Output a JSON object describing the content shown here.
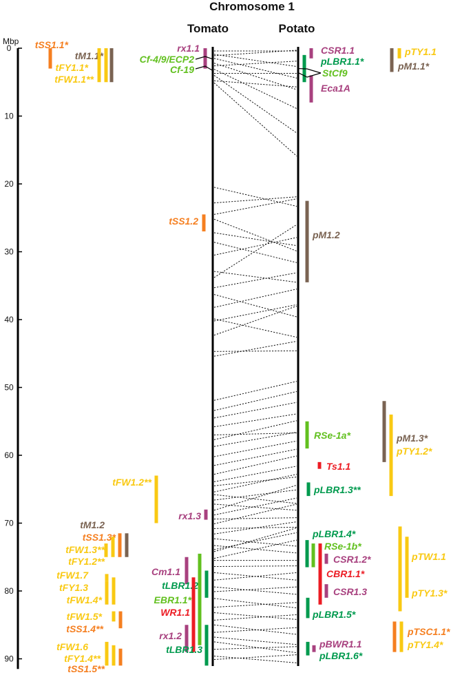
{
  "header": {
    "title": "Chromosome 1",
    "left_track": "Tomato",
    "right_track": "Potato"
  },
  "axis": {
    "unit": "Mbp",
    "ticks": [
      0,
      10,
      20,
      30,
      40,
      50,
      60,
      70,
      80,
      90
    ],
    "max": 91.5
  },
  "colors": {
    "orange": "#f57f20",
    "brown": "#7a6352",
    "yellow": "#f9c913",
    "magenta": "#a8417f",
    "green": "#009a4e",
    "lightgreen": "#62c01f",
    "red": "#ec1c24",
    "black": "#000000"
  },
  "chart_data": {
    "type": "diagram",
    "tomato_markers": [
      {
        "label": "tSS1.1*",
        "color": "orange",
        "start": 0,
        "end": 3
      },
      {
        "label": "tM1.1*",
        "color": "brown",
        "start": 0,
        "end": 5
      },
      {
        "label": "tFY1.1*",
        "color": "yellow",
        "start": 0,
        "end": 5
      },
      {
        "label": "tFW1.1**",
        "color": "yellow",
        "start": 0,
        "end": 5
      },
      {
        "label": "rx1.1",
        "color": "magenta",
        "start": 0,
        "end": 3
      },
      {
        "label": "Cf-4/9/ECP2",
        "color": "lightgreen",
        "start": 1.6,
        "end": 1.6
      },
      {
        "label": "Cf-19",
        "color": "lightgreen",
        "start": 3.3,
        "end": 3.3
      },
      {
        "label": "tSS1.2",
        "color": "orange",
        "start": 24.5,
        "end": 27
      },
      {
        "label": "tFW1.2**",
        "color": "yellow",
        "start": 63,
        "end": 70
      },
      {
        "label": "rx1.3",
        "color": "magenta",
        "start": 68,
        "end": 69.5
      },
      {
        "label": "tM1.2",
        "color": "brown",
        "start": 71.5,
        "end": 75
      },
      {
        "label": "tSS1.3*",
        "color": "orange",
        "start": 71.5,
        "end": 75
      },
      {
        "label": "tFW1.3**",
        "color": "yellow",
        "start": 73,
        "end": 75
      },
      {
        "label": "tFY1.2**",
        "color": "yellow",
        "start": 72,
        "end": 75
      },
      {
        "label": "Cm1.1",
        "color": "magenta",
        "start": 75,
        "end": 79
      },
      {
        "label": "tLBR1.2",
        "color": "green",
        "start": 77,
        "end": 81
      },
      {
        "label": "EBR1.1*",
        "color": "lightgreen",
        "start": 74.5,
        "end": 88
      },
      {
        "label": "WR1.1",
        "color": "red",
        "start": 78,
        "end": 89
      },
      {
        "label": "rx1.2",
        "color": "magenta",
        "start": 85,
        "end": 89
      },
      {
        "label": "tLBR1.3",
        "color": "green",
        "start": 85,
        "end": 91
      },
      {
        "label": "tFW1.7",
        "color": "yellow",
        "start": 77.5,
        "end": 78.5
      },
      {
        "label": "tFY1.3",
        "color": "yellow",
        "start": 78.5,
        "end": 82
      },
      {
        "label": "tFW1.4*",
        "color": "yellow",
        "start": 78,
        "end": 82
      },
      {
        "label": "tFW1.5*",
        "color": "yellow",
        "start": 83,
        "end": 84.5
      },
      {
        "label": "tSS1.4**",
        "color": "orange",
        "start": 83,
        "end": 85.5
      },
      {
        "label": "tFW1.6",
        "color": "yellow",
        "start": 87.5,
        "end": 91
      },
      {
        "label": "tFY1.4**",
        "color": "yellow",
        "start": 88,
        "end": 91
      },
      {
        "label": "tSS1.5**",
        "color": "orange",
        "start": 88.5,
        "end": 91
      }
    ],
    "potato_markers": [
      {
        "label": "CSR1.1",
        "color": "magenta",
        "start": 0,
        "end": 1.5
      },
      {
        "label": "pLBR1.1*",
        "color": "green",
        "start": 1,
        "end": 5
      },
      {
        "label": "StCf9",
        "color": "lightgreen",
        "start": 3,
        "end": 3
      },
      {
        "label": "Eca1A",
        "color": "magenta",
        "start": 4,
        "end": 8
      },
      {
        "label": "pTY1.1",
        "color": "yellow",
        "start": 0,
        "end": 1.5
      },
      {
        "label": "pM1.1*",
        "color": "brown",
        "start": 0,
        "end": 3.5
      },
      {
        "label": "pM1.2",
        "color": "brown",
        "start": 22.5,
        "end": 34.5
      },
      {
        "label": "RSe-1a*",
        "color": "lightgreen",
        "start": 55,
        "end": 59
      },
      {
        "label": "Ts1.1",
        "color": "red",
        "start": 61,
        "end": 62
      },
      {
        "label": "pLBR1.3**",
        "color": "green",
        "start": 64,
        "end": 66
      },
      {
        "label": "pM1.3*",
        "color": "brown",
        "start": 52,
        "end": 61
      },
      {
        "label": "pTY1.2*",
        "color": "yellow",
        "start": 54,
        "end": 66
      },
      {
        "label": "pLBR1.4*",
        "color": "green",
        "start": 72.5,
        "end": 76.5
      },
      {
        "label": "RSe-1b*",
        "color": "lightgreen",
        "start": 73,
        "end": 76.5
      },
      {
        "label": "CSR1.2*",
        "color": "magenta",
        "start": 74.5,
        "end": 76
      },
      {
        "label": "CBR1.1*",
        "color": "red",
        "start": 73,
        "end": 82
      },
      {
        "label": "CSR1.3",
        "color": "magenta",
        "start": 79,
        "end": 81
      },
      {
        "label": "pLBR1.5*",
        "color": "green",
        "start": 81,
        "end": 84
      },
      {
        "label": "pBWR1.1",
        "color": "magenta",
        "start": 88,
        "end": 89
      },
      {
        "label": "pLBR1.6*",
        "color": "green",
        "start": 87.5,
        "end": 89.5
      },
      {
        "label": "pTW1.1",
        "color": "yellow",
        "start": 70.5,
        "end": 83
      },
      {
        "label": "pTY1.3*",
        "color": "yellow",
        "start": 72,
        "end": 81
      },
      {
        "label": "pTSC1.1*",
        "color": "orange",
        "start": 84.5,
        "end": 89
      },
      {
        "label": "pTY1.4*",
        "color": "yellow",
        "start": 84.5,
        "end": 89
      }
    ],
    "synteny_links": [
      [
        0.4,
        0.4
      ],
      [
        0.9,
        2.7
      ],
      [
        1.5,
        4.4
      ],
      [
        2.2,
        6.1
      ],
      [
        3.1,
        8.9
      ],
      [
        4,
        12.5
      ],
      [
        5.1,
        15.9
      ],
      [
        1.1,
        0.3
      ],
      [
        2.6,
        1.9
      ],
      [
        3.7,
        3.7
      ],
      [
        4.8,
        5.7
      ],
      [
        20.5,
        23.3
      ],
      [
        22.8,
        21.9
      ],
      [
        24.5,
        22.2
      ],
      [
        25.2,
        29.9
      ],
      [
        27.2,
        29.1
      ],
      [
        28.6,
        31.6
      ],
      [
        30.5,
        27.9
      ],
      [
        32.9,
        34.5
      ],
      [
        33.8,
        26
      ],
      [
        35.3,
        33.1
      ],
      [
        36.3,
        39.6
      ],
      [
        38.2,
        35.5
      ],
      [
        40.2,
        37.8
      ],
      [
        39.9,
        42.6
      ],
      [
        42.3,
        38
      ],
      [
        44.7,
        44.6
      ],
      [
        45.4,
        43.2
      ],
      [
        51.9,
        49.1
      ],
      [
        53.4,
        50.6
      ],
      [
        54.5,
        52.2
      ],
      [
        55.8,
        53.9
      ],
      [
        57,
        56.7
      ],
      [
        57.7,
        54.9
      ],
      [
        58.7,
        56.6
      ],
      [
        60.2,
        57.9
      ],
      [
        61.5,
        59.1
      ],
      [
        62.8,
        60.1
      ],
      [
        63.9,
        61.6
      ],
      [
        64.5,
        63.2
      ],
      [
        65.4,
        62.8
      ],
      [
        65.8,
        67.1
      ],
      [
        66.6,
        65.1
      ],
      [
        67.2,
        68.1
      ],
      [
        68.1,
        64.4
      ],
      [
        68.8,
        66.3
      ],
      [
        69.4,
        69.2
      ],
      [
        70.1,
        67.2
      ],
      [
        70.8,
        70.6
      ],
      [
        71.6,
        69.8
      ],
      [
        72.3,
        73.4
      ],
      [
        73.3,
        74.4
      ],
      [
        73.9,
        71.4
      ],
      [
        74.2,
        70.7
      ],
      [
        75.2,
        72.5
      ],
      [
        75.5,
        75.5
      ],
      [
        76.4,
        76.3
      ],
      [
        77.3,
        78.4
      ],
      [
        78.4,
        77.3
      ],
      [
        79.4,
        80.5
      ],
      [
        80.1,
        79.4
      ],
      [
        81.1,
        82.5
      ],
      [
        82.4,
        81.7
      ],
      [
        83.2,
        84.2
      ],
      [
        84.3,
        83.5
      ],
      [
        85,
        86.4
      ],
      [
        86.1,
        85.4
      ],
      [
        86.8,
        87.9
      ],
      [
        87.5,
        89.1
      ],
      [
        88.6,
        88.2
      ],
      [
        89.6,
        90.6
      ],
      [
        90.1,
        89.4
      ]
    ]
  }
}
